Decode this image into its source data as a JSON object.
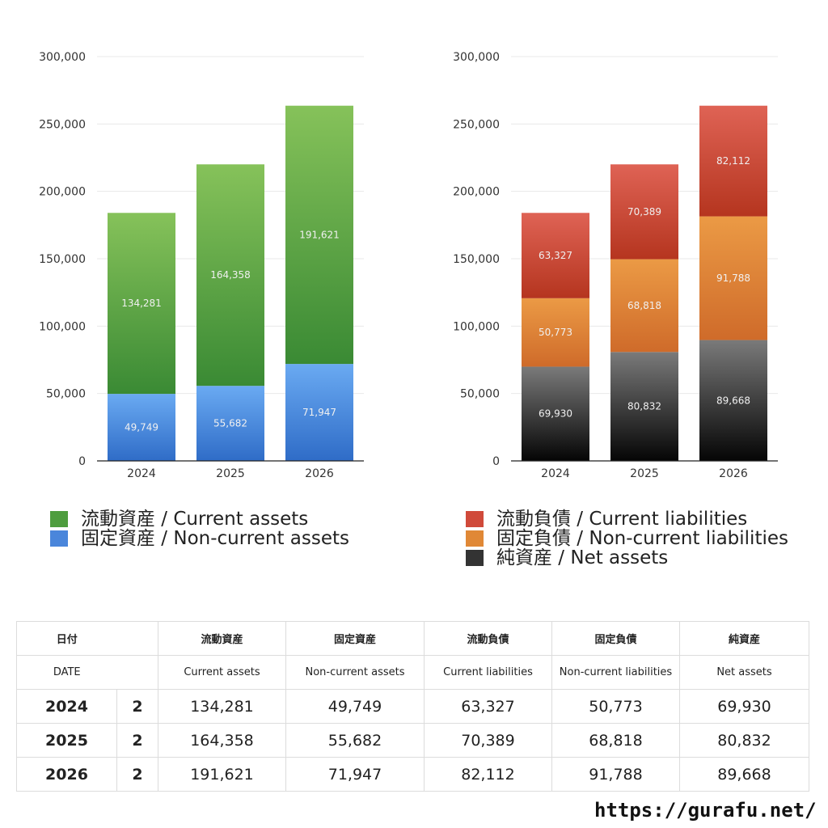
{
  "colors": {
    "current_assets": "#4e9d3e",
    "non_current_assets": "#4a86db",
    "current_liabilities": "#d04a3a",
    "non_current_liabilities": "#e08836",
    "net_assets": "#333333",
    "grid": "#e8e8e8",
    "axis": "#222222"
  },
  "chart_data": [
    {
      "type": "bar",
      "stacked": true,
      "categories": [
        "2024",
        "2025",
        "2026"
      ],
      "series": [
        {
          "name": "固定資産 / Non-current assets",
          "values": [
            49749,
            55682,
            71947
          ],
          "color_top": "#6aaaf2",
          "color_bottom": "#2f6cc7"
        },
        {
          "name": "流動資産 / Current assets",
          "values": [
            134281,
            164358,
            191621
          ],
          "color_top": "#86c25a",
          "color_bottom": "#3a8a34"
        }
      ],
      "yticks": [
        "300,000",
        "250,000",
        "200,000",
        "150,000",
        "100,000",
        "50,000",
        "0"
      ],
      "ylim": [
        0,
        300000
      ],
      "grid": true
    },
    {
      "type": "bar",
      "stacked": true,
      "categories": [
        "2024",
        "2025",
        "2026"
      ],
      "series": [
        {
          "name": "純資産 / Net assets",
          "values": [
            69930,
            80832,
            89668
          ],
          "color_top": "#7a7a7a",
          "color_bottom": "#050505"
        },
        {
          "name": "固定負債 / Non-current liabilities",
          "values": [
            50773,
            68818,
            91788
          ],
          "color_top": "#eb9a45",
          "color_bottom": "#cf6b2a"
        },
        {
          "name": "流動負債 / Current liabilities",
          "values": [
            63327,
            70389,
            82112
          ],
          "color_top": "#df6355",
          "color_bottom": "#b5351f"
        }
      ],
      "yticks": [
        "300,000",
        "250,000",
        "200,000",
        "150,000",
        "100,000",
        "50,000",
        "0"
      ],
      "ylim": [
        0,
        300000
      ],
      "grid": true
    }
  ],
  "legend_left": [
    {
      "label": "流動資産 / Current assets",
      "color": "#4e9d3e"
    },
    {
      "label": "固定資産 / Non-current assets",
      "color": "#4a86db"
    }
  ],
  "legend_right": [
    {
      "label": "流動負債 / Current liabilities",
      "color": "#d04a3a"
    },
    {
      "label": "固定負債 / Non-current liabilities",
      "color": "#e08836"
    },
    {
      "label": "純資産 / Net assets",
      "color": "#333333"
    }
  ],
  "table": {
    "headers_jp": [
      "日付",
      "流動資産",
      "固定資産",
      "流動負債",
      "固定負債",
      "純資産"
    ],
    "headers_en": [
      "DATE",
      "Current assets",
      "Non-current assets",
      "Current liabilities",
      "Non-current liabilities",
      "Net assets"
    ],
    "rows": [
      {
        "year": "2024",
        "q": "2",
        "vals": [
          "134,281",
          "49,749",
          "63,327",
          "50,773",
          "69,930"
        ]
      },
      {
        "year": "2025",
        "q": "2",
        "vals": [
          "164,358",
          "55,682",
          "70,389",
          "68,818",
          "80,832"
        ]
      },
      {
        "year": "2026",
        "q": "2",
        "vals": [
          "191,621",
          "71,947",
          "82,112",
          "91,788",
          "89,668"
        ]
      }
    ]
  },
  "site_url": "https://gurafu.net/"
}
